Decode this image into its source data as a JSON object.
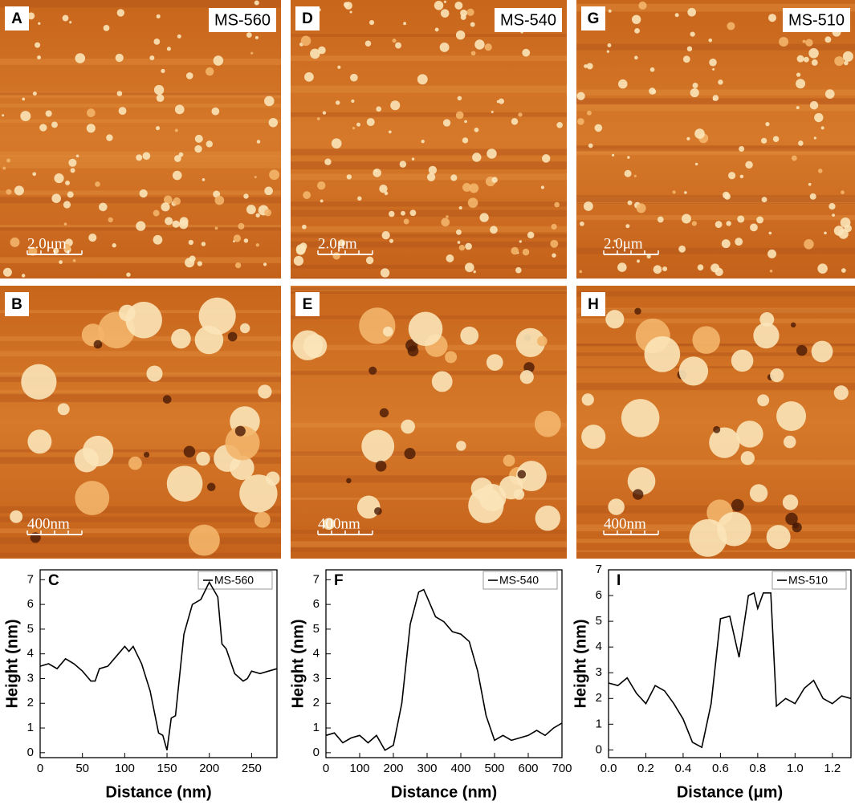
{
  "images": [
    {
      "letter": "A",
      "label": "MS-560",
      "scale": "2.0μm"
    },
    {
      "letter": "D",
      "label": "MS-540",
      "scale": "2.0μm"
    },
    {
      "letter": "G",
      "label": "MS-510",
      "scale": "2.0μm"
    },
    {
      "letter": "B",
      "scale": "400nm"
    },
    {
      "letter": "E",
      "scale": "400nm"
    },
    {
      "letter": "H",
      "scale": "400nm"
    }
  ],
  "chart_data": [
    {
      "type": "line",
      "label": "C",
      "x_label": "Distance (nm)",
      "y_label": "Height (nm)",
      "x": [
        0,
        10,
        20,
        30,
        40,
        50,
        60,
        65,
        70,
        80,
        90,
        100,
        105,
        110,
        120,
        130,
        140,
        145,
        150,
        155,
        160,
        170,
        180,
        190,
        200,
        205,
        210,
        215,
        220,
        230,
        240,
        245,
        250,
        260,
        270,
        280
      ],
      "series": [
        {
          "name": "MS-560",
          "color": "#000000",
          "values": [
            3.5,
            3.6,
            3.4,
            3.8,
            3.6,
            3.3,
            2.9,
            2.9,
            3.4,
            3.5,
            3.9,
            4.3,
            4.1,
            4.3,
            3.6,
            2.5,
            0.8,
            0.7,
            0.1,
            1.4,
            1.5,
            4.8,
            6.0,
            6.2,
            6.9,
            6.6,
            6.3,
            4.4,
            4.2,
            3.2,
            2.9,
            3.0,
            3.3,
            3.2,
            3.3,
            3.4
          ]
        }
      ],
      "xlim": [
        0,
        280
      ],
      "ylim": [
        -0.2,
        7.4
      ],
      "xticks": [
        0,
        50,
        100,
        150,
        200,
        250
      ],
      "yticks": [
        0,
        1,
        2,
        3,
        4,
        5,
        6,
        7
      ]
    },
    {
      "type": "line",
      "label": "F",
      "x_label": "Distance (nm)",
      "y_label": "Height (nm)",
      "x": [
        0,
        25,
        50,
        75,
        100,
        125,
        150,
        175,
        200,
        225,
        250,
        275,
        290,
        300,
        325,
        350,
        375,
        400,
        425,
        450,
        475,
        500,
        525,
        550,
        575,
        600,
        625,
        650,
        675,
        700
      ],
      "series": [
        {
          "name": "MS-540",
          "color": "#000000",
          "values": [
            0.7,
            0.8,
            0.4,
            0.6,
            0.7,
            0.4,
            0.7,
            0.1,
            0.3,
            2.0,
            5.2,
            6.5,
            6.6,
            6.3,
            5.5,
            5.3,
            4.9,
            4.8,
            4.5,
            3.3,
            1.5,
            0.5,
            0.7,
            0.5,
            0.6,
            0.7,
            0.9,
            0.7,
            1.0,
            1.2
          ]
        }
      ],
      "xlim": [
        0,
        700
      ],
      "ylim": [
        -0.2,
        7.4
      ],
      "xticks": [
        0,
        100,
        200,
        300,
        400,
        500,
        600,
        700
      ],
      "yticks": [
        0,
        1,
        2,
        3,
        4,
        5,
        6,
        7
      ]
    },
    {
      "type": "line",
      "label": "I",
      "x_label": "Distance (μm)",
      "y_label": "Height (nm)",
      "x": [
        0,
        0.05,
        0.1,
        0.15,
        0.2,
        0.25,
        0.3,
        0.35,
        0.4,
        0.45,
        0.5,
        0.55,
        0.6,
        0.65,
        0.7,
        0.75,
        0.78,
        0.8,
        0.83,
        0.87,
        0.9,
        0.95,
        1.0,
        1.05,
        1.1,
        1.15,
        1.2,
        1.25,
        1.3
      ],
      "series": [
        {
          "name": "MS-510",
          "color": "#000000",
          "values": [
            2.6,
            2.5,
            2.8,
            2.2,
            1.8,
            2.5,
            2.3,
            1.8,
            1.2,
            0.3,
            0.1,
            1.8,
            5.1,
            5.2,
            3.6,
            6.0,
            6.1,
            5.5,
            6.1,
            6.1,
            1.7,
            2.0,
            1.8,
            2.4,
            2.7,
            2.0,
            1.8,
            2.1,
            2.0
          ]
        }
      ],
      "xlim": [
        0,
        1.3
      ],
      "ylim": [
        -0.3,
        7
      ],
      "xticks": [
        {
          "value": 0,
          "label": "0.0"
        },
        0.2,
        0.4,
        0.6,
        0.8,
        {
          "value": 1,
          "label": "1.0"
        },
        1.2
      ],
      "yticks": [
        0,
        1,
        2,
        3,
        4,
        5,
        6,
        7
      ]
    }
  ]
}
